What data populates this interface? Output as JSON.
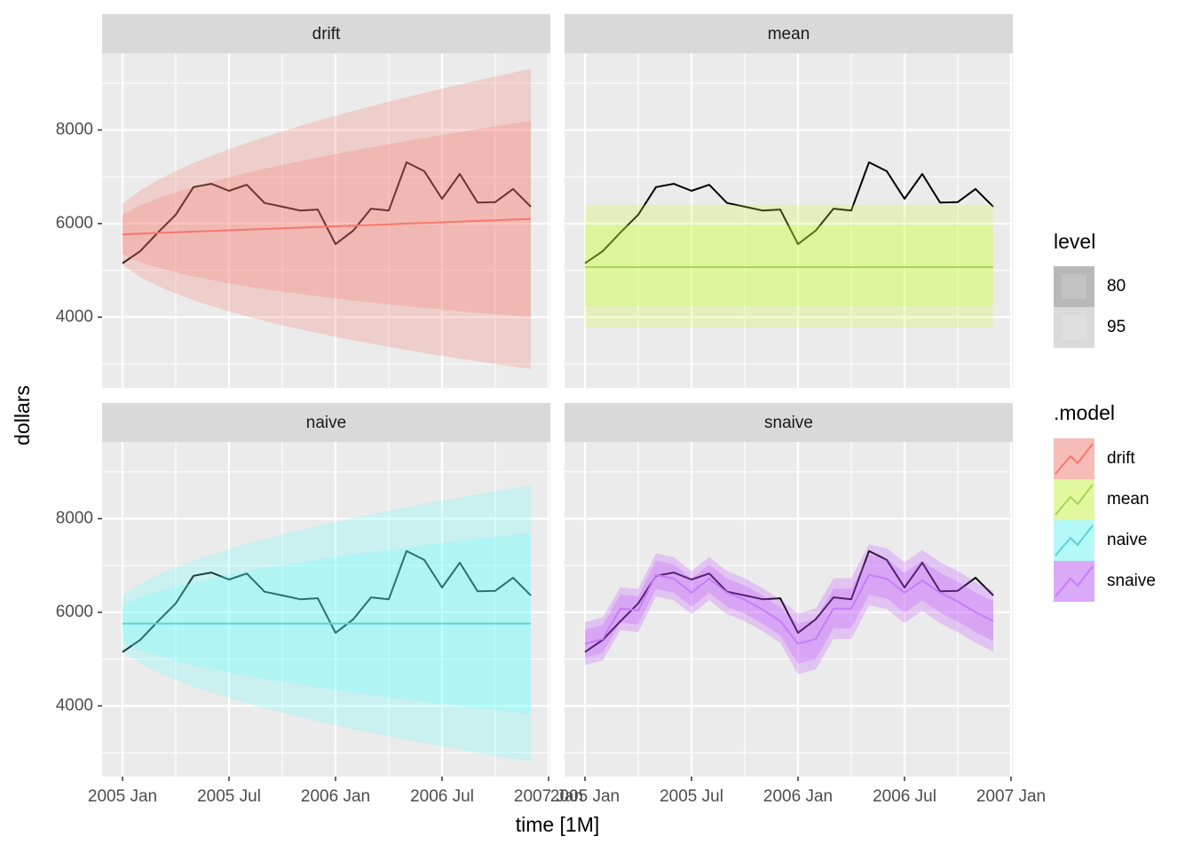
{
  "chart_data": {
    "type": "forecast",
    "xlabel": "time [1M]",
    "ylabel": "dollars",
    "x": [
      "2005 Jan",
      "2005 Feb",
      "2005 Mar",
      "2005 Apr",
      "2005 May",
      "2005 Jun",
      "2005 Jul",
      "2005 Aug",
      "2005 Sep",
      "2005 Oct",
      "2005 Nov",
      "2005 Dec",
      "2006 Jan",
      "2006 Feb",
      "2006 Mar",
      "2006 Apr",
      "2006 May",
      "2006 Jun",
      "2006 Jul",
      "2006 Aug",
      "2006 Sep",
      "2006 Oct",
      "2006 Nov",
      "2006 Dec"
    ],
    "xlim": [
      -1.15,
      24.1
    ],
    "xticks": [
      {
        "value": 0,
        "label": "2005 Jan"
      },
      {
        "value": 6,
        "label": "2005 Jul"
      },
      {
        "value": 12,
        "label": "2006 Jan"
      },
      {
        "value": 18,
        "label": "2006 Jul"
      },
      {
        "value": 24,
        "label": "2007 Jan"
      }
    ],
    "xminor": [
      3,
      9,
      15,
      21
    ],
    "ylim": [
      2490,
      9640
    ],
    "yticks": [
      4000,
      6000,
      8000
    ],
    "yminor": [
      3000,
      5000,
      7000,
      9000
    ],
    "grid": true,
    "observed": {
      "color": "#000000",
      "values": [
        5150,
        5410,
        5810,
        6190,
        6780,
        6850,
        6700,
        6830,
        6440,
        6360,
        6280,
        6300,
        5560,
        5850,
        6320,
        6280,
        7310,
        7120,
        6530,
        7060,
        6450,
        6460,
        6740,
        6360
      ]
    },
    "level_title": "level",
    "levels": [
      80,
      95
    ],
    "legend_title": ".model",
    "series": [
      {
        "name": "drift",
        "color": "#F8766D",
        "fill": "#F8766D",
        "mean": [
          5770,
          5784,
          5799,
          5813,
          5827,
          5842,
          5856,
          5870,
          5885,
          5899,
          5914,
          5928,
          5942,
          5957,
          5971,
          5985,
          6000,
          6014,
          6028,
          6043,
          6057,
          6071,
          6086,
          6100
        ],
        "lo80": [
          5342,
          5179,
          5058,
          4957,
          4870,
          4794,
          4724,
          4660,
          4601,
          4546,
          4494,
          4445,
          4399,
          4355,
          4313,
          4273,
          4235,
          4198,
          4162,
          4129,
          4095,
          4064,
          4033,
          4003
        ],
        "hi80": [
          6198,
          6389,
          6540,
          6669,
          6784,
          6890,
          6988,
          7080,
          7169,
          7252,
          7334,
          7411,
          7485,
          7559,
          7629,
          7697,
          7765,
          7830,
          7894,
          7957,
          8019,
          8078,
          8139,
          8197
        ],
        "lo95": [
          5115,
          4858,
          4665,
          4503,
          4362,
          4238,
          4123,
          4018,
          3920,
          3828,
          3741,
          3659,
          3580,
          3506,
          3434,
          3365,
          3299,
          3235,
          3173,
          3114,
          3055,
          2999,
          2945,
          2892
        ],
        "hi95": [
          6425,
          6710,
          6933,
          7123,
          7292,
          7446,
          7589,
          7722,
          7850,
          7970,
          8087,
          8197,
          8304,
          8408,
          8508,
          8605,
          8701,
          8793,
          8883,
          8972,
          9059,
          9143,
          9227,
          9308
        ]
      },
      {
        "name": "mean",
        "color": "#A6D65A",
        "fill": "#CCFF33",
        "mean": 5070,
        "lo80": 4240,
        "hi80": 5960,
        "lo95": 3780,
        "hi95": 6400
      },
      {
        "name": "naive",
        "color": "#5FD3D6",
        "fill": "#66FFFF",
        "mean": 5760,
        "lo80": [
          5366,
          5203,
          5078,
          4972,
          4879,
          4795,
          4717,
          4646,
          4578,
          4514,
          4453,
          4395,
          4339,
          4286,
          4234,
          4184,
          4136,
          4088,
          4043,
          3998,
          3954,
          3912,
          3870,
          3830
        ],
        "hi80": [
          6154,
          6317,
          6442,
          6548,
          6641,
          6725,
          6803,
          6874,
          6942,
          7006,
          7067,
          7125,
          7181,
          7234,
          7286,
          7336,
          7384,
          7432,
          7477,
          7522,
          7566,
          7608,
          7650,
          7690
        ],
        "lo95": [
          5157,
          4907,
          4716,
          4554,
          4412,
          4283,
          4164,
          4055,
          3951,
          3853,
          3760,
          3671,
          3586,
          3504,
          3425,
          3348,
          3274,
          3202,
          3132,
          3063,
          2997,
          2932,
          2868,
          2806
        ],
        "hi95": [
          6363,
          6613,
          6804,
          6966,
          7108,
          7237,
          7356,
          7465,
          7569,
          7667,
          7760,
          7849,
          7934,
          8016,
          8095,
          8172,
          8246,
          8318,
          8388,
          8457,
          8523,
          8588,
          8652,
          8714
        ]
      },
      {
        "name": "snaive",
        "color": "#C77CFF",
        "fill": "#C04AFF",
        "mean": [
          5330,
          5430,
          6080,
          6040,
          6800,
          6720,
          6420,
          6720,
          6420,
          6270,
          6060,
          5810,
          5330,
          5430,
          6080,
          6080,
          6800,
          6720,
          6420,
          6680,
          6420,
          6230,
          6000,
          5810
        ],
        "lo80": [
          5030,
          5130,
          5780,
          5740,
          6500,
          6420,
          6120,
          6420,
          6120,
          5970,
          5760,
          5510,
          4905,
          5005,
          5655,
          5655,
          6375,
          6295,
          5995,
          6255,
          5995,
          5805,
          5575,
          5385
        ],
        "hi80": [
          5630,
          5730,
          6380,
          6340,
          7100,
          7020,
          6720,
          7020,
          6720,
          6570,
          6360,
          6110,
          5755,
          5855,
          6505,
          6505,
          7225,
          7145,
          6845,
          7105,
          6845,
          6655,
          6425,
          6235
        ],
        "lo95": [
          4870,
          4970,
          5620,
          5580,
          6340,
          6260,
          5960,
          6260,
          5960,
          5810,
          5600,
          5350,
          4680,
          4780,
          5430,
          5430,
          6150,
          6070,
          5770,
          6030,
          5770,
          5580,
          5350,
          5160
        ],
        "hi95": [
          5790,
          5890,
          6540,
          6500,
          7260,
          7180,
          6880,
          7180,
          6880,
          6730,
          6520,
          6270,
          5980,
          6080,
          6730,
          6730,
          7450,
          7370,
          7070,
          7330,
          7070,
          6880,
          6650,
          6460
        ]
      }
    ]
  }
}
